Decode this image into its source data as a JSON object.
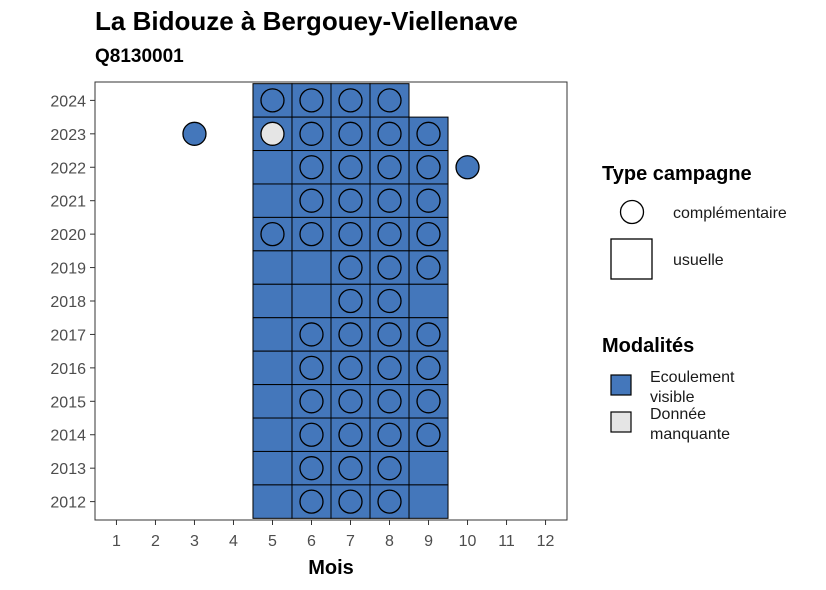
{
  "title": "La Bidouze à Bergouey-Viellenave",
  "subtitle": "Q8130001",
  "colors": {
    "visible": "#4477bb",
    "missing": "#e5e5e5",
    "panel_border": "#333333",
    "tick_text": "#4d4d4d"
  },
  "legend": {
    "type_title": "Type campagne",
    "type_items": [
      {
        "label": "complémentaire",
        "shape": "circle"
      },
      {
        "label": "usuelle",
        "shape": "square"
      }
    ],
    "mod_title": "Modalités",
    "mod_items": [
      {
        "label_lines": [
          "Ecoulement",
          "visible"
        ],
        "key": "visible"
      },
      {
        "label_lines": [
          "Donnée",
          "manquante"
        ],
        "key": "missing"
      }
    ]
  },
  "chart_data": {
    "type": "heatmap",
    "xlabel": "Mois",
    "ylabel": "",
    "x_ticks": [
      1,
      2,
      3,
      4,
      5,
      6,
      7,
      8,
      9,
      10,
      11,
      12
    ],
    "y_ticks": [
      2012,
      2013,
      2014,
      2015,
      2016,
      2017,
      2018,
      2019,
      2020,
      2021,
      2022,
      2023,
      2024
    ],
    "xlim": [
      0.45,
      12.55
    ],
    "ylim": [
      2011.45,
      2024.55
    ],
    "legend_position": "right",
    "usuelle": [
      {
        "year": 2024,
        "months": [
          5,
          6,
          7,
          8
        ],
        "modalite": "visible"
      },
      {
        "year": 2023,
        "months": [
          5,
          6,
          7,
          8,
          9
        ],
        "modalite": "visible"
      },
      {
        "year": 2022,
        "months": [
          5,
          6,
          7,
          8,
          9
        ],
        "modalite": "visible"
      },
      {
        "year": 2021,
        "months": [
          5,
          6,
          7,
          8,
          9
        ],
        "modalite": "visible"
      },
      {
        "year": 2020,
        "months": [
          5,
          6,
          7,
          8,
          9
        ],
        "modalite": "visible"
      },
      {
        "year": 2019,
        "months": [
          5,
          6,
          7,
          8,
          9
        ],
        "modalite": "visible"
      },
      {
        "year": 2018,
        "months": [
          5,
          6,
          7,
          8,
          9
        ],
        "modalite": "visible"
      },
      {
        "year": 2017,
        "months": [
          5,
          6,
          7,
          8,
          9
        ],
        "modalite": "visible"
      },
      {
        "year": 2016,
        "months": [
          5,
          6,
          7,
          8,
          9
        ],
        "modalite": "visible"
      },
      {
        "year": 2015,
        "months": [
          5,
          6,
          7,
          8,
          9
        ],
        "modalite": "visible"
      },
      {
        "year": 2014,
        "months": [
          5,
          6,
          7,
          8,
          9
        ],
        "modalite": "visible"
      },
      {
        "year": 2013,
        "months": [
          5,
          6,
          7,
          8,
          9
        ],
        "modalite": "visible"
      },
      {
        "year": 2012,
        "months": [
          5,
          6,
          7,
          8,
          9
        ],
        "modalite": "visible"
      }
    ],
    "complementaire": [
      {
        "year": 2024,
        "months": [
          5,
          6,
          7,
          8
        ],
        "modalite": "visible"
      },
      {
        "year": 2023,
        "months": [
          3,
          6,
          7,
          8,
          9
        ],
        "modalite": "visible"
      },
      {
        "year": 2023,
        "months": [
          5
        ],
        "modalite": "missing"
      },
      {
        "year": 2022,
        "months": [
          6,
          7,
          8,
          9,
          10
        ],
        "modalite": "visible"
      },
      {
        "year": 2021,
        "months": [
          6,
          7,
          8,
          9
        ],
        "modalite": "visible"
      },
      {
        "year": 2020,
        "months": [
          5,
          6,
          7,
          8,
          9
        ],
        "modalite": "visible"
      },
      {
        "year": 2019,
        "months": [
          7,
          8,
          9
        ],
        "modalite": "visible"
      },
      {
        "year": 2018,
        "months": [
          7,
          8
        ],
        "modalite": "visible"
      },
      {
        "year": 2017,
        "months": [
          6,
          7,
          8,
          9
        ],
        "modalite": "visible"
      },
      {
        "year": 2016,
        "months": [
          6,
          7,
          8,
          9
        ],
        "modalite": "visible"
      },
      {
        "year": 2015,
        "months": [
          6,
          7,
          8,
          9
        ],
        "modalite": "visible"
      },
      {
        "year": 2014,
        "months": [
          6,
          7,
          8,
          9
        ],
        "modalite": "visible"
      },
      {
        "year": 2013,
        "months": [
          6,
          7,
          8
        ],
        "modalite": "visible"
      },
      {
        "year": 2012,
        "months": [
          6,
          7,
          8
        ],
        "modalite": "visible"
      }
    ]
  }
}
